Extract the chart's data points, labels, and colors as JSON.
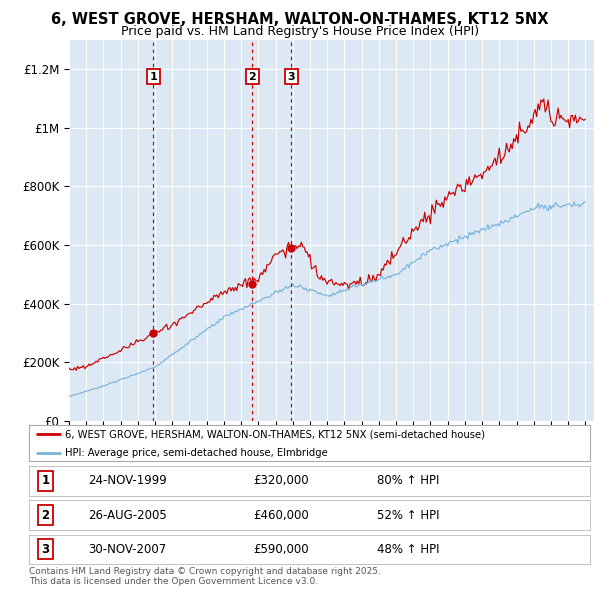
{
  "title": "6, WEST GROVE, HERSHAM, WALTON-ON-THAMES, KT12 5NX",
  "subtitle": "Price paid vs. HM Land Registry's House Price Index (HPI)",
  "bg_color": "#dce9f5",
  "red_line_color": "#cc0000",
  "blue_line_color": "#7ab3d9",
  "yticks": [
    0,
    200000,
    400000,
    600000,
    800000,
    1000000,
    1200000
  ],
  "ytick_labels": [
    "£0",
    "£200K",
    "£400K",
    "£600K",
    "£800K",
    "£1M",
    "£1.2M"
  ],
  "transactions": [
    {
      "num": 1,
      "date": "24-NOV-1999",
      "year": 1999.9,
      "price": 320000,
      "pct": "80% ↑ HPI"
    },
    {
      "num": 2,
      "date": "26-AUG-2005",
      "year": 2005.65,
      "price": 460000,
      "pct": "52% ↑ HPI"
    },
    {
      "num": 3,
      "date": "30-NOV-2007",
      "year": 2007.92,
      "price": 590000,
      "pct": "48% ↑ HPI"
    }
  ],
  "legend_label_red": "6, WEST GROVE, HERSHAM, WALTON-ON-THAMES, KT12 5NX (semi-detached house)",
  "legend_label_blue": "HPI: Average price, semi-detached house, Elmbridge",
  "footer": "Contains HM Land Registry data © Crown copyright and database right 2025.\nThis data is licensed under the Open Government Licence v3.0."
}
